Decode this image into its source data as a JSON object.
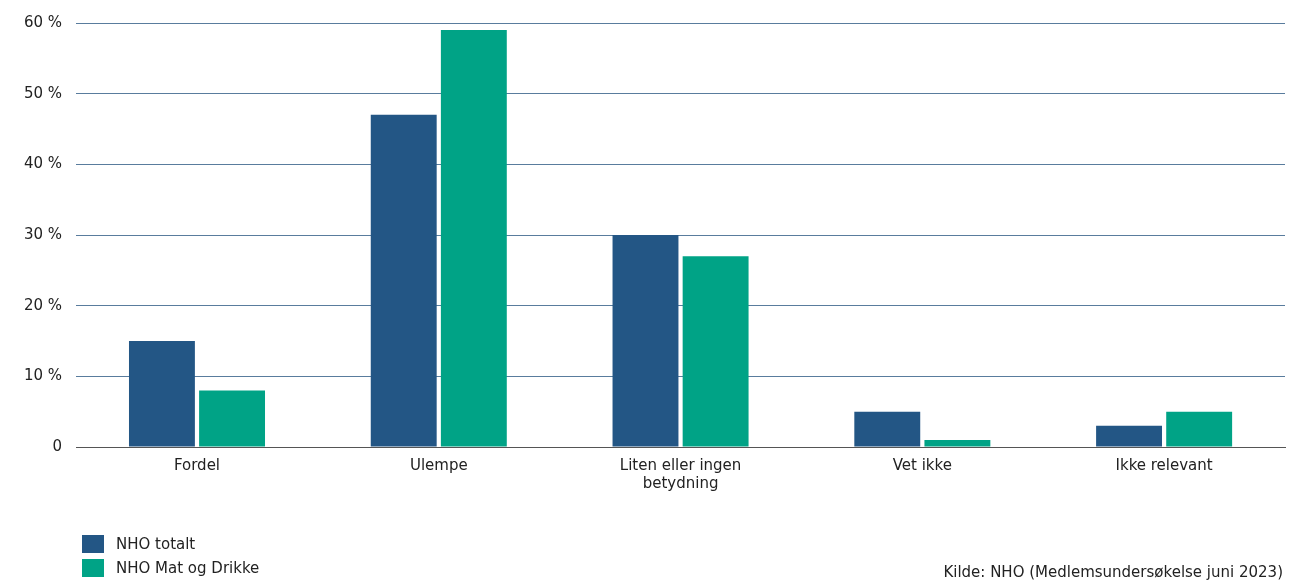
{
  "chart_data": {
    "type": "bar",
    "categories": [
      "Fordel",
      "Ulempe",
      "Liten eller ingen betydning",
      "Vet ikke",
      "Ikke relevant"
    ],
    "series": [
      {
        "name": "NHO totalt",
        "color": "#235685",
        "values": [
          15,
          47,
          30,
          5,
          3
        ]
      },
      {
        "name": "NHO Mat og Drikke",
        "color": "#00a386",
        "values": [
          8,
          59,
          27,
          1,
          5
        ]
      }
    ],
    "ylim": [
      0,
      60
    ],
    "yticks": [
      {
        "value": 0,
        "label": "0"
      },
      {
        "value": 10,
        "label": "10 %"
      },
      {
        "value": 20,
        "label": "20 %"
      },
      {
        "value": 30,
        "label": "30 %"
      },
      {
        "value": 40,
        "label": "40 %"
      },
      {
        "value": 50,
        "label": "50 %"
      },
      {
        "value": 60,
        "label": "60 %"
      }
    ],
    "grid": "y",
    "legend": "bottom left",
    "annotations": [
      "Kilde: NHO (Medlemsundersøkelse juni 2023)"
    ]
  }
}
